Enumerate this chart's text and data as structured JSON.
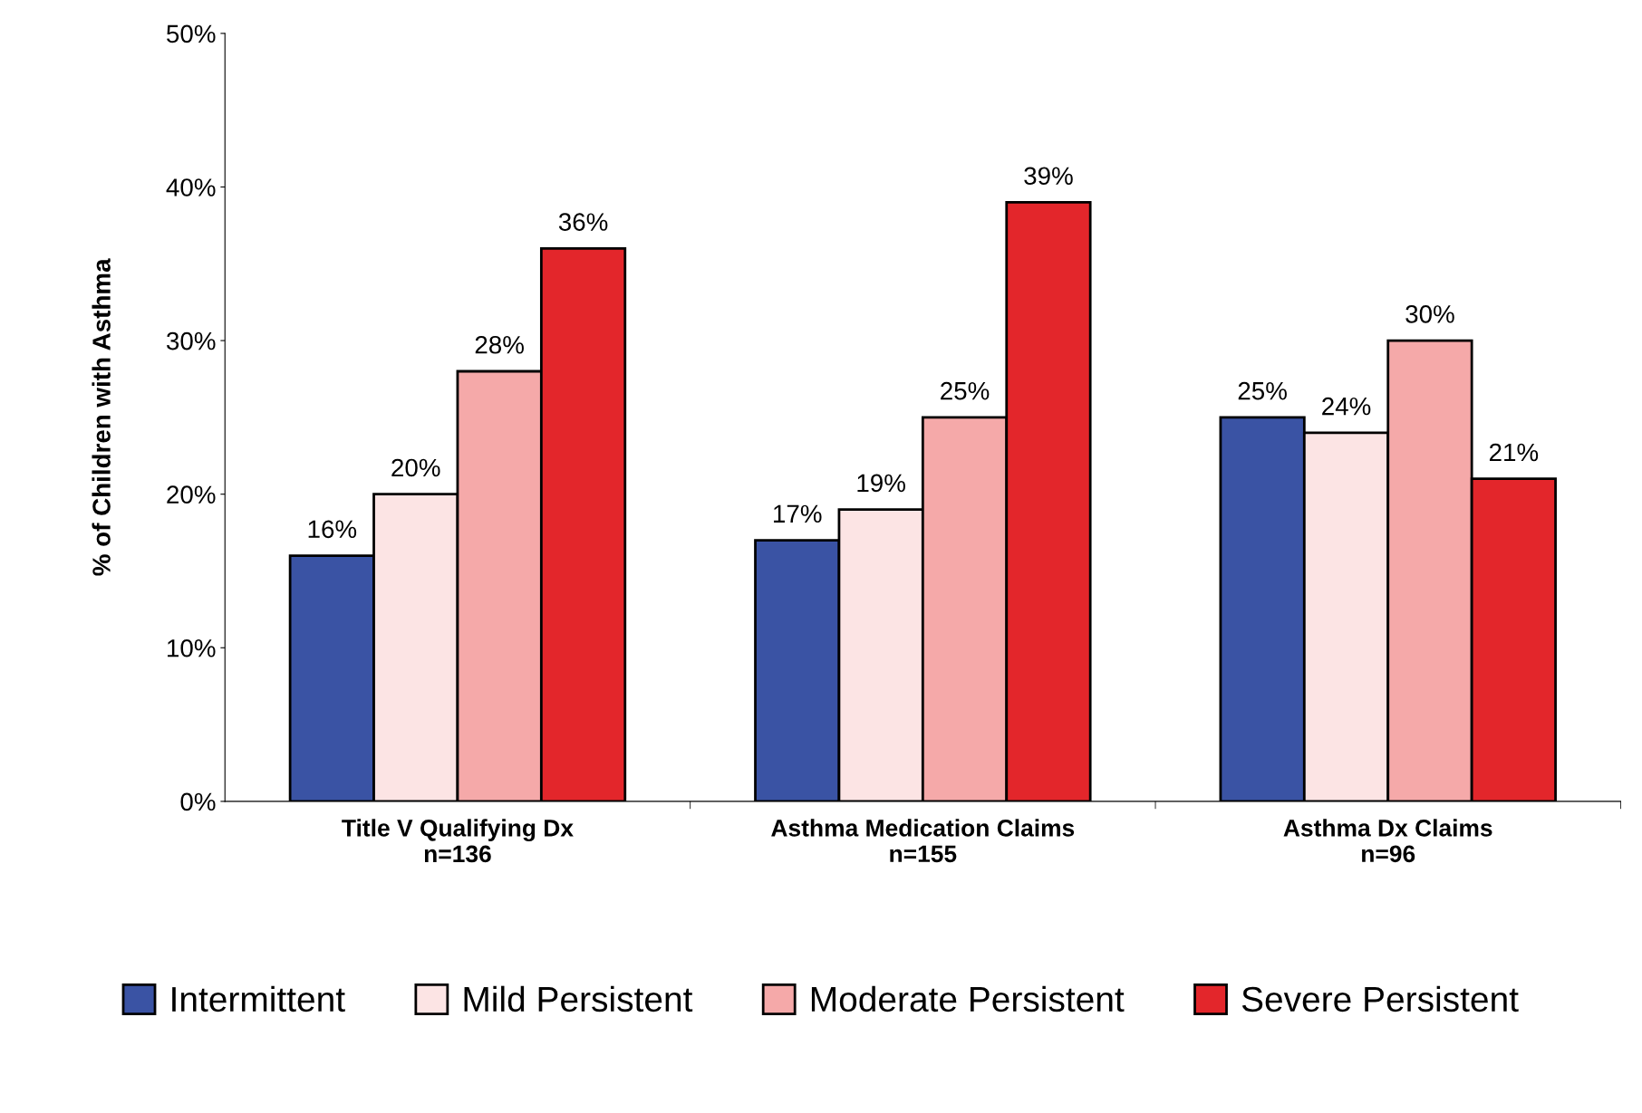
{
  "chart_data": {
    "type": "bar",
    "ylabel": "% of Children with Asthma",
    "categories": [
      "Title V Qualifying Dx\nn=136",
      "Asthma Medication Claims\nn=155",
      "Asthma Dx Claims\nn=96"
    ],
    "series": [
      {
        "name": "Intermittent",
        "color": "#3a53a4",
        "values": [
          16,
          17,
          25
        ],
        "value_labels": [
          "16%",
          "17%",
          "25%"
        ]
      },
      {
        "name": "Mild Persistent",
        "color": "#fce4e4",
        "values": [
          20,
          19,
          24
        ],
        "value_labels": [
          "20%",
          "19%",
          "24%"
        ]
      },
      {
        "name": "Moderate Persistent",
        "color": "#f5a9a9",
        "values": [
          28,
          25,
          30
        ],
        "value_labels": [
          "28%",
          "25%",
          "30%"
        ]
      },
      {
        "name": "Severe Persistent",
        "color": "#e3262b",
        "values": [
          36,
          39,
          21
        ],
        "value_labels": [
          "36%",
          "39%",
          "21%"
        ]
      }
    ],
    "ylim": [
      0,
      50
    ],
    "yticks": [
      {
        "value": 0,
        "label": "0%"
      },
      {
        "value": 10,
        "label": "10%"
      },
      {
        "value": 20,
        "label": "20%"
      },
      {
        "value": 30,
        "label": "30%"
      },
      {
        "value": 40,
        "label": "40%"
      },
      {
        "value": 50,
        "label": "50%"
      }
    ],
    "grid": false,
    "legend": "bottom"
  }
}
